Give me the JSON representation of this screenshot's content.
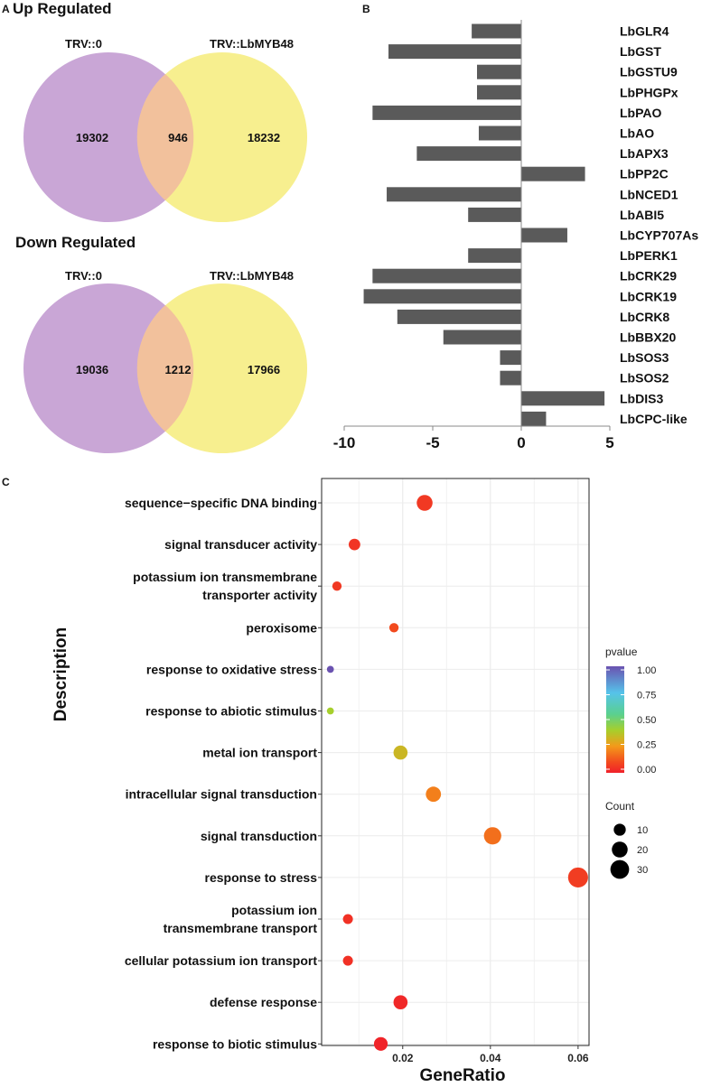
{
  "panels": {
    "a_letter": "A",
    "b_letter": "B",
    "c_letter": "C"
  },
  "venn": {
    "colors": {
      "left": "#c9a6d6",
      "right": "#f7ef8f",
      "overlap": "#f2c19c"
    },
    "up": {
      "title": "Up Regulated",
      "left_label": "TRV::0",
      "right_label": "TRV::LbMYB48",
      "left_only": "19302",
      "overlap": "946",
      "right_only": "18232"
    },
    "down": {
      "title": "Down Regulated",
      "left_label": "TRV::0",
      "right_label": "TRV::LbMYB48",
      "left_only": "19036",
      "overlap": "1212",
      "right_only": "17966"
    }
  },
  "chart_data": [
    {
      "panel": "A",
      "type": "venn",
      "sets": [
        {
          "title": "Up Regulated",
          "left": "TRV::0",
          "right": "TRV::LbMYB48",
          "left_only": 19302,
          "overlap": 946,
          "right_only": 18232
        },
        {
          "title": "Down Regulated",
          "left": "TRV::0",
          "right": "TRV::LbMYB48",
          "left_only": 19036,
          "overlap": 1212,
          "right_only": 17966
        }
      ]
    },
    {
      "panel": "B",
      "type": "bar",
      "orientation": "horizontal",
      "bar_color": "#5a5a5a",
      "categories": [
        "LbGLR4",
        "LbGST",
        "LbGSTU9",
        "LbPHGPx",
        "LbPAO",
        "LbAO",
        "LbAPX3",
        "LbPP2C",
        "LbNCED1",
        "LbABI5",
        "LbCYP707As",
        "LbPERK1",
        "LbCRK29",
        "LbCRK19",
        "LbCRK8",
        "LbBBX20",
        "LbSOS3",
        "LbSOS2",
        "LbDIS3",
        "LbCPC-like"
      ],
      "values": [
        -2.8,
        -7.5,
        -2.5,
        -2.5,
        -8.4,
        -2.4,
        -5.9,
        3.6,
        -7.6,
        -3.0,
        2.6,
        -3.0,
        -8.4,
        -8.9,
        -7.0,
        -4.4,
        -1.2,
        -1.2,
        4.7,
        1.4
      ],
      "xlim": [
        -10,
        5
      ],
      "xticks": [
        "-10",
        "-5",
        "0",
        "5"
      ],
      "xlabel": "",
      "ylabel": ""
    },
    {
      "panel": "C",
      "type": "scatter",
      "subtype": "dotplot",
      "xlabel": "GeneRatio",
      "ylabel": "Description",
      "xlim": [
        0.0015,
        0.0625
      ],
      "xticks": [
        "0.02",
        "0.04",
        "0.06"
      ],
      "grid": true,
      "categories": [
        "sequence−specific DNA binding",
        "signal transducer activity",
        "potassium ion transmembrane|transporter activity",
        "peroxisome",
        "response to oxidative stress",
        "response to abiotic stimulus",
        "metal ion transport",
        "intracellular signal transduction",
        "signal transduction",
        "response to stress",
        "potassium ion|transmembrane transport",
        "cellular potassium ion transport",
        "defense response",
        "response to biotic stimulus"
      ],
      "points": [
        {
          "term": "sequence−specific DNA binding",
          "gene_ratio": 0.025,
          "count": 20,
          "pvalue": 0.06
        },
        {
          "term": "signal transducer activity",
          "gene_ratio": 0.009,
          "count": 9,
          "pvalue": 0.05
        },
        {
          "term": "potassium ion transmembrane transporter activity",
          "gene_ratio": 0.005,
          "count": 5,
          "pvalue": 0.06
        },
        {
          "term": "peroxisome",
          "gene_ratio": 0.018,
          "count": 5,
          "pvalue": 0.1
        },
        {
          "term": "response to oxidative stress",
          "gene_ratio": 0.0035,
          "count": 2,
          "pvalue": 1.0
        },
        {
          "term": "response to abiotic stimulus",
          "gene_ratio": 0.0035,
          "count": 2,
          "pvalue": 0.4
        },
        {
          "term": "metal ion transport",
          "gene_ratio": 0.0195,
          "count": 15,
          "pvalue": 0.33
        },
        {
          "term": "intracellular signal transduction",
          "gene_ratio": 0.027,
          "count": 18,
          "pvalue": 0.2
        },
        {
          "term": "signal transduction",
          "gene_ratio": 0.0405,
          "count": 25,
          "pvalue": 0.17
        },
        {
          "term": "response to stress",
          "gene_ratio": 0.06,
          "count": 35,
          "pvalue": 0.07
        },
        {
          "term": "potassium ion transmembrane transport",
          "gene_ratio": 0.0075,
          "count": 6,
          "pvalue": 0.04
        },
        {
          "term": "cellular potassium ion transport",
          "gene_ratio": 0.0075,
          "count": 6,
          "pvalue": 0.04
        },
        {
          "term": "defense response",
          "gene_ratio": 0.0195,
          "count": 15,
          "pvalue": 0.02
        },
        {
          "term": "response to biotic stimulus",
          "gene_ratio": 0.015,
          "count": 14,
          "pvalue": 0.01
        }
      ],
      "legend_color": {
        "title": "pvalue",
        "ticks": [
          "1.00",
          "0.75",
          "0.50",
          "0.25",
          "0.00"
        ],
        "range": [
          0,
          1
        ]
      },
      "legend_size": {
        "title": "Count",
        "ticks": [
          "10",
          "20",
          "30"
        ]
      },
      "legend_placement": "right"
    }
  ]
}
